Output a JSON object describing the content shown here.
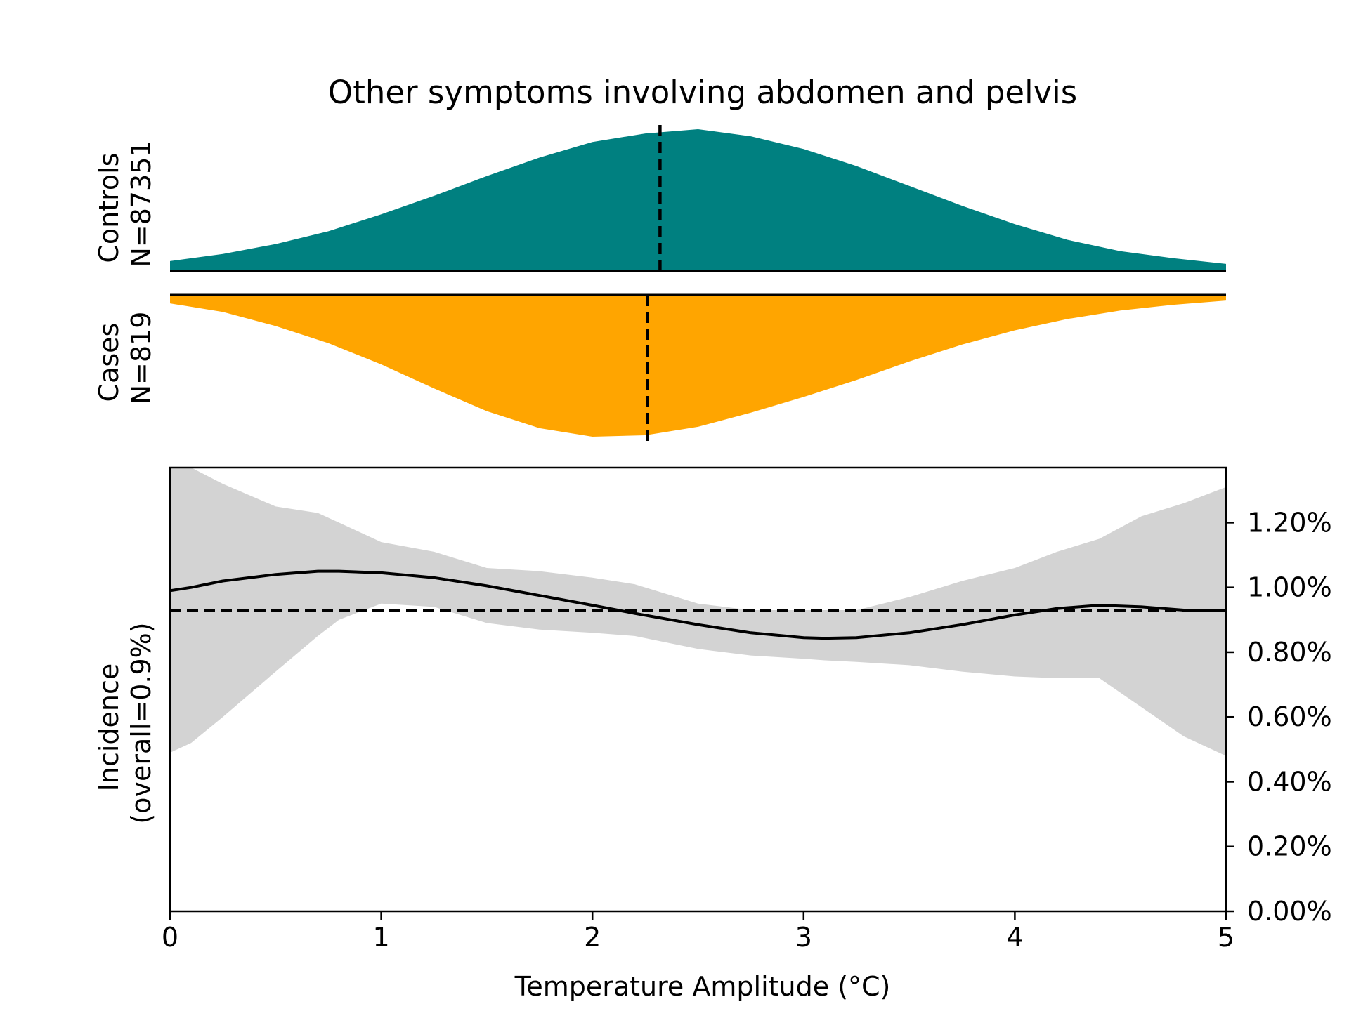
{
  "chart_data": {
    "type": "area",
    "title": "Other symptoms involving abdomen and pelvis",
    "xlabel": "Temperature Amplitude (°C)",
    "xlim": [
      0,
      5
    ],
    "x_ticks": [
      "0",
      "1",
      "2",
      "3",
      "4",
      "5"
    ],
    "colors": {
      "controls": "#008080",
      "cases": "#FFA500",
      "ci_band": "#D3D3D3",
      "line": "#000000"
    },
    "density_panels": {
      "controls": {
        "label_line1": "Controls",
        "label_line2": "N=87351",
        "x": [
          0,
          0.25,
          0.5,
          0.75,
          1.0,
          1.25,
          1.5,
          1.75,
          2.0,
          2.25,
          2.5,
          2.75,
          3.0,
          3.25,
          3.5,
          3.75,
          4.0,
          4.25,
          4.5,
          4.75,
          5.0
        ],
        "density": [
          0.07,
          0.12,
          0.19,
          0.28,
          0.4,
          0.53,
          0.67,
          0.8,
          0.91,
          0.97,
          1.0,
          0.95,
          0.86,
          0.74,
          0.6,
          0.46,
          0.33,
          0.22,
          0.14,
          0.09,
          0.05
        ],
        "median": 2.32
      },
      "cases": {
        "label_line1": "Cases",
        "label_line2": "N=819",
        "x": [
          0,
          0.25,
          0.5,
          0.75,
          1.0,
          1.25,
          1.5,
          1.75,
          2.0,
          2.25,
          2.5,
          2.75,
          3.0,
          3.25,
          3.5,
          3.75,
          4.0,
          4.25,
          4.5,
          4.75,
          5.0
        ],
        "density": [
          0.06,
          0.12,
          0.22,
          0.34,
          0.49,
          0.66,
          0.82,
          0.94,
          1.0,
          0.99,
          0.93,
          0.83,
          0.72,
          0.6,
          0.47,
          0.35,
          0.25,
          0.17,
          0.11,
          0.07,
          0.04
        ],
        "median": 2.26
      }
    },
    "incidence_panel": {
      "ylabel_line1": "Incidence",
      "ylabel_line2": "(overall=0.9%)",
      "ylim": [
        0,
        1.37
      ],
      "y_ticks": [
        {
          "value": 0.0,
          "label": "0.00%"
        },
        {
          "value": 0.2,
          "label": "0.20%"
        },
        {
          "value": 0.4,
          "label": "0.40%"
        },
        {
          "value": 0.6,
          "label": "0.60%"
        },
        {
          "value": 0.8,
          "label": "0.80%"
        },
        {
          "value": 1.0,
          "label": "1.00%"
        },
        {
          "value": 1.2,
          "label": "1.20%"
        }
      ],
      "overall": 0.93,
      "x": [
        0,
        0.1,
        0.25,
        0.5,
        0.7,
        0.8,
        1.0,
        1.25,
        1.5,
        1.75,
        2.0,
        2.2,
        2.5,
        2.75,
        3.0,
        3.1,
        3.25,
        3.5,
        3.75,
        4.0,
        4.2,
        4.4,
        4.6,
        4.8,
        5.0
      ],
      "incidence": [
        0.99,
        1.0,
        1.02,
        1.04,
        1.05,
        1.05,
        1.045,
        1.03,
        1.005,
        0.975,
        0.945,
        0.92,
        0.885,
        0.86,
        0.845,
        0.843,
        0.845,
        0.86,
        0.885,
        0.915,
        0.935,
        0.945,
        0.94,
        0.93,
        0.93
      ],
      "ci_upper": [
        1.37,
        1.37,
        1.32,
        1.25,
        1.23,
        1.2,
        1.14,
        1.11,
        1.06,
        1.05,
        1.03,
        1.01,
        0.95,
        0.93,
        0.93,
        0.93,
        0.93,
        0.97,
        1.02,
        1.06,
        1.11,
        1.15,
        1.22,
        1.26,
        1.31
      ],
      "ci_lower": [
        0.49,
        0.52,
        0.6,
        0.74,
        0.85,
        0.9,
        0.95,
        0.94,
        0.89,
        0.87,
        0.86,
        0.85,
        0.81,
        0.79,
        0.78,
        0.775,
        0.77,
        0.76,
        0.74,
        0.725,
        0.72,
        0.72,
        0.63,
        0.54,
        0.48
      ]
    }
  }
}
